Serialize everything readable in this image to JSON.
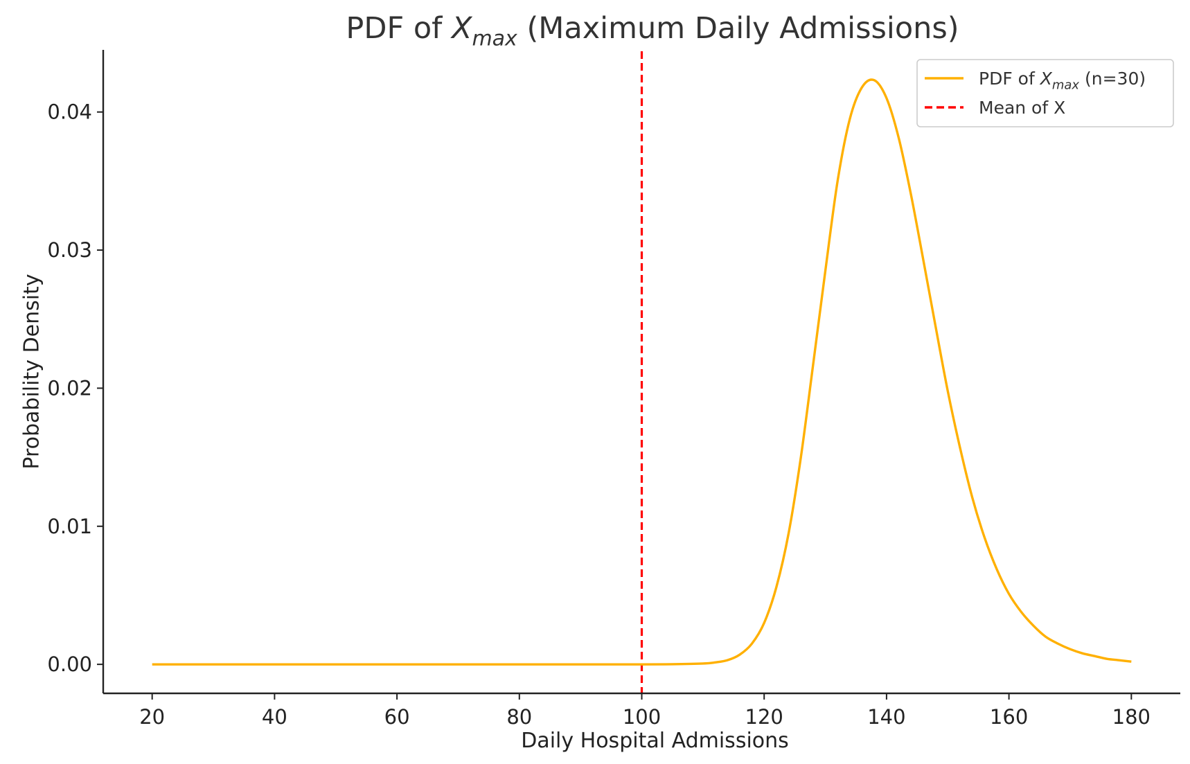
{
  "chart_data": {
    "type": "line",
    "title": {
      "prefix": "PDF of ",
      "var": "X",
      "sub": "max",
      "suffix": " (Maximum Daily Admissions)"
    },
    "xlabel": "Daily Hospital Admissions",
    "ylabel": "Probability Density",
    "xlim": [
      12,
      188
    ],
    "ylim": [
      -0.0021,
      0.0445
    ],
    "xticks": [
      20,
      40,
      60,
      80,
      100,
      120,
      140,
      160,
      180
    ],
    "xtick_labels": [
      "20",
      "40",
      "60",
      "80",
      "100",
      "120",
      "140",
      "160",
      "180"
    ],
    "yticks": [
      0.0,
      0.01,
      0.02,
      0.03,
      0.04
    ],
    "ytick_labels": [
      "0.00",
      "0.01",
      "0.02",
      "0.03",
      "0.04"
    ],
    "grid": false,
    "legend_position": "top-right",
    "legend": [
      {
        "prefix": "PDF of ",
        "var": "X",
        "sub": "max",
        "suffix": " (n=30)",
        "color": "#FFB000",
        "style": "solid"
      },
      {
        "prefix": "Mean of X",
        "var": "",
        "sub": "",
        "suffix": "",
        "color": "#FF0000",
        "style": "dashed"
      }
    ],
    "series": [
      {
        "color": "#FFB000",
        "style": "solid",
        "x": [
          20,
          40,
          60,
          80,
          100,
          105,
          110,
          112,
          114,
          116,
          118,
          120,
          122,
          124,
          126,
          128,
          130,
          132,
          134,
          136,
          138,
          140,
          142,
          144,
          146,
          148,
          150,
          152,
          154,
          156,
          158,
          160,
          162,
          164,
          166,
          168,
          170,
          172,
          174,
          176,
          178,
          180
        ],
        "y": [
          0.0,
          0.0,
          0.0,
          0.0,
          0.0,
          1e-05,
          6e-05,
          0.00014,
          0.0003,
          0.0007,
          0.0015,
          0.003,
          0.0056,
          0.0095,
          0.015,
          0.0217,
          0.0285,
          0.035,
          0.0395,
          0.0418,
          0.0423,
          0.041,
          0.0381,
          0.034,
          0.0293,
          0.0245,
          0.0198,
          0.0157,
          0.0121,
          0.0092,
          0.0069,
          0.0051,
          0.0038,
          0.0028,
          0.002,
          0.0015,
          0.0011,
          0.0008,
          0.0006,
          0.0004,
          0.0003,
          0.0002
        ]
      }
    ],
    "vlines": [
      {
        "x": 100,
        "color": "#FF0000",
        "style": "dashed"
      }
    ]
  }
}
